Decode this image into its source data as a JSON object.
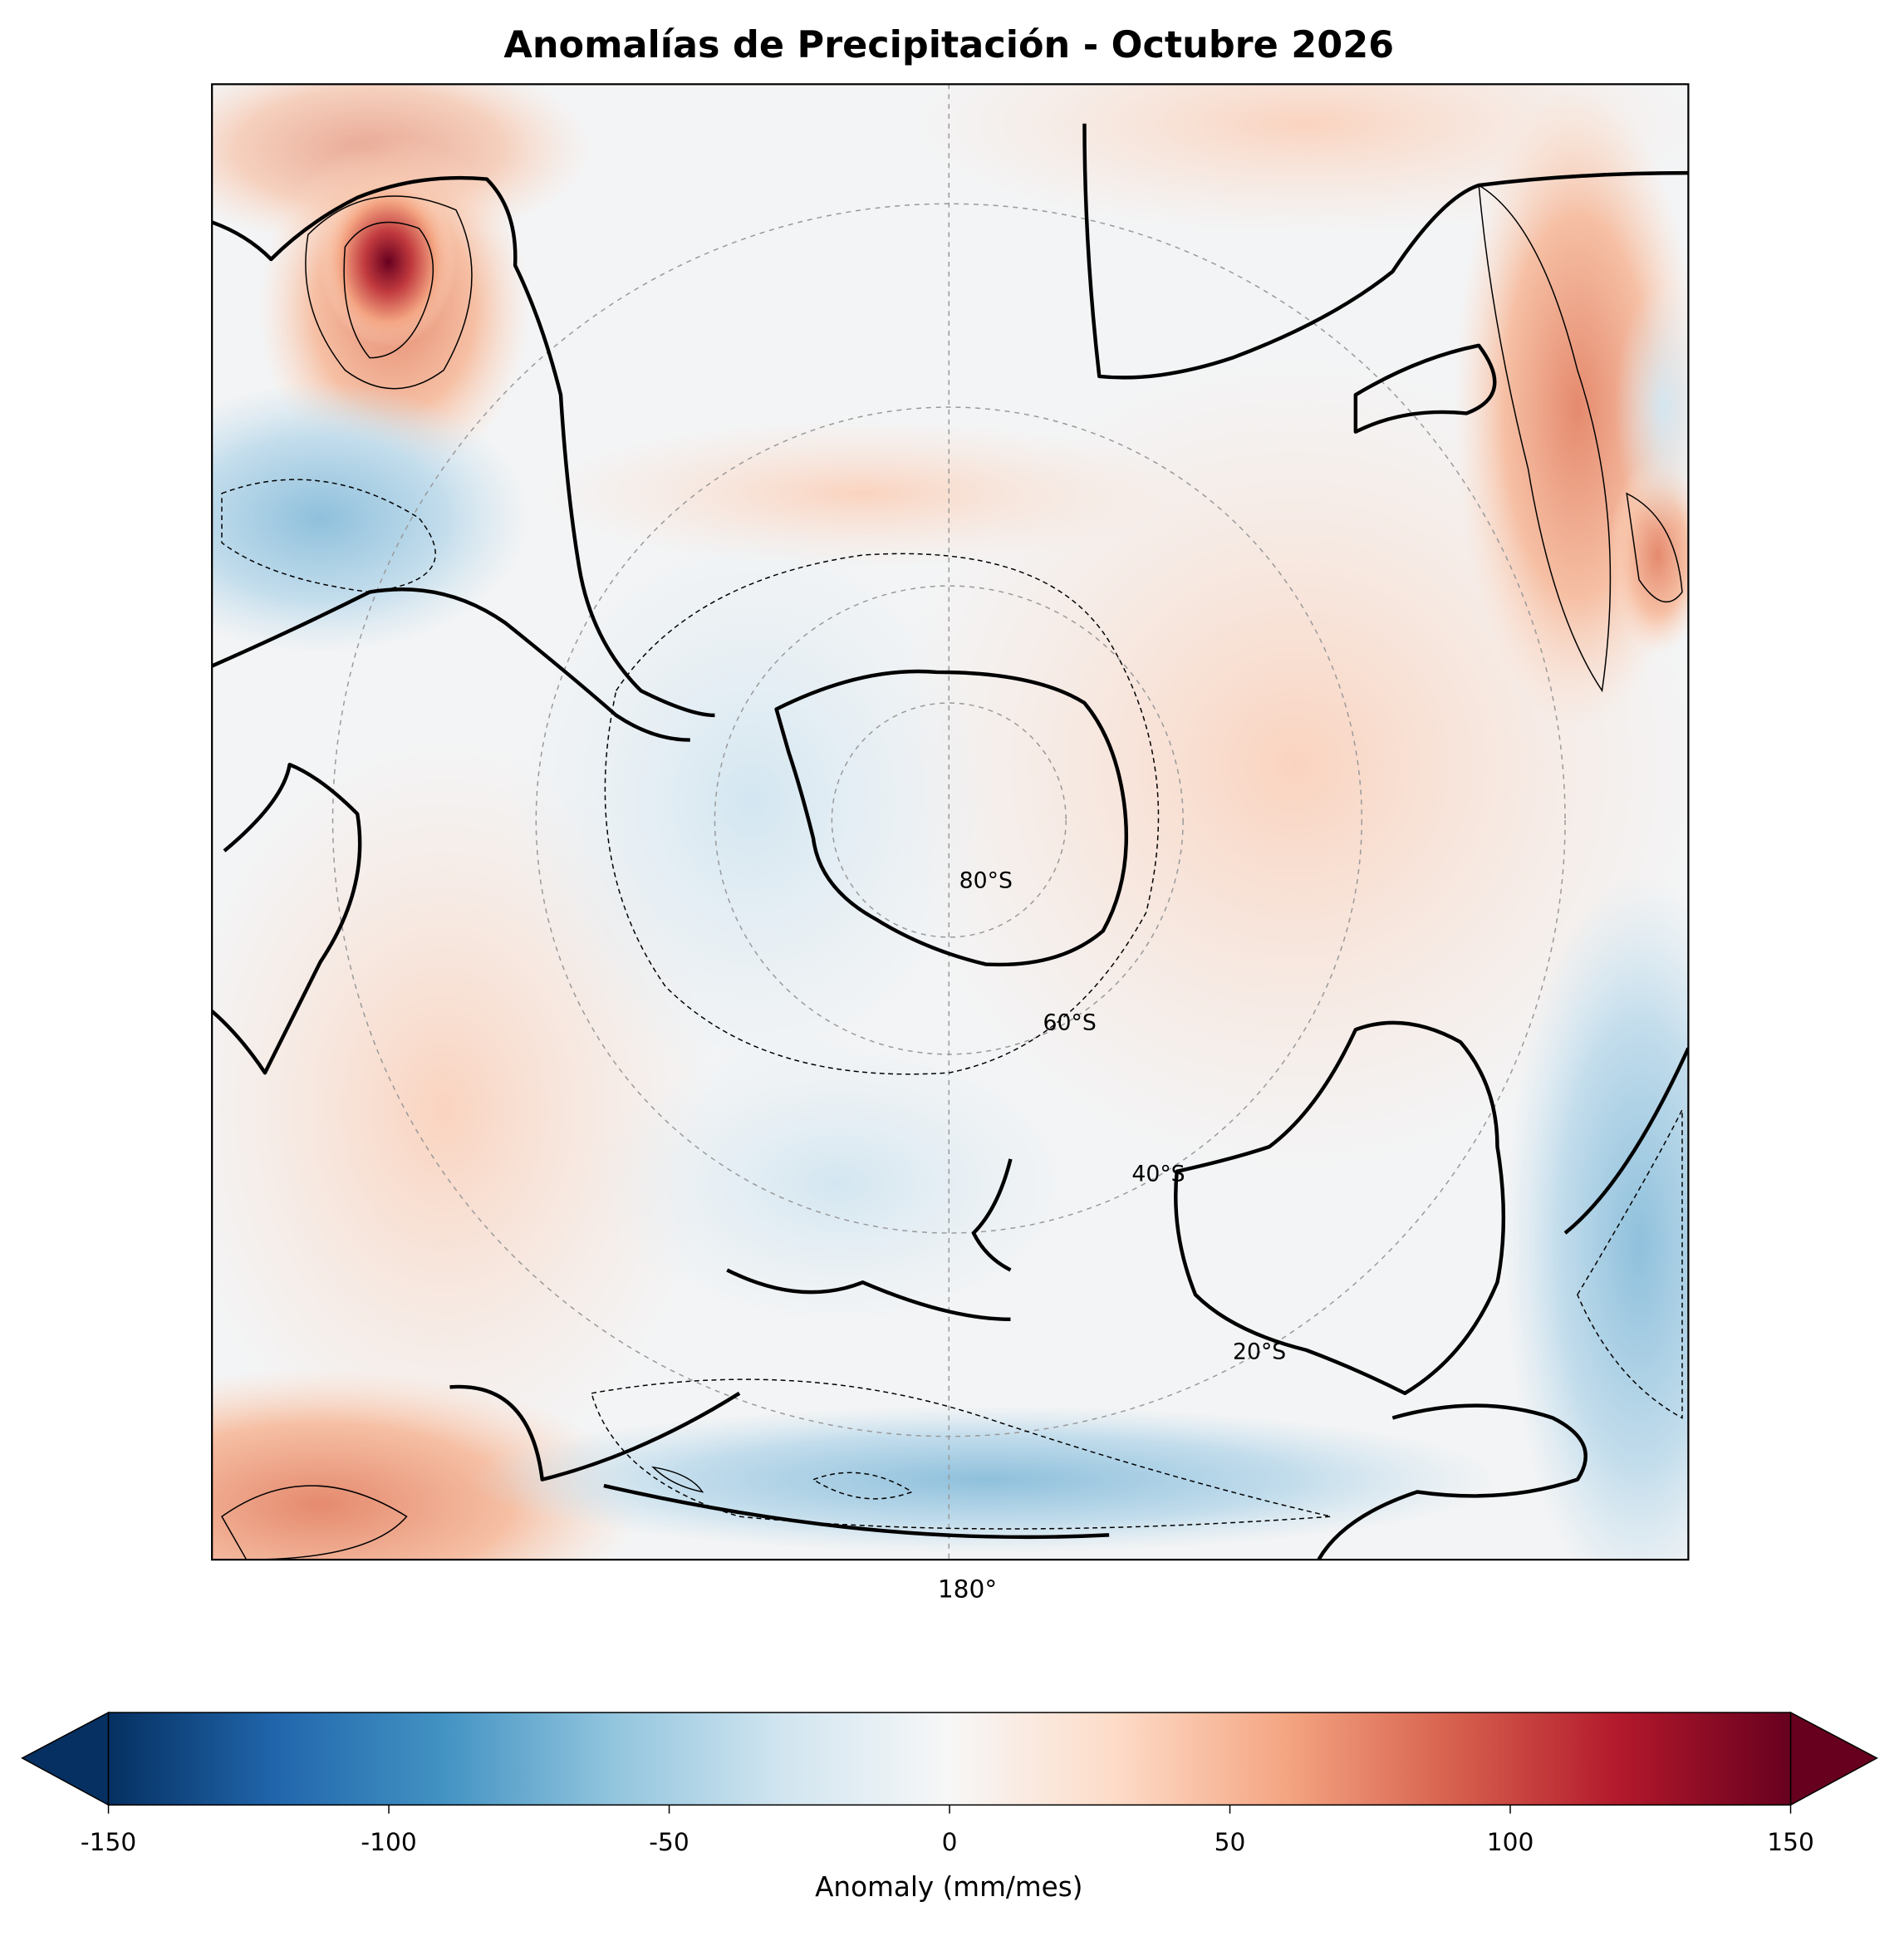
{
  "title": "Anomalías de Precipitación - Octubre 2026",
  "map": {
    "lon_labels": [
      "180°"
    ],
    "lat_labels": [
      "80°S",
      "60°S",
      "40°S",
      "20°S"
    ]
  },
  "colorbar": {
    "label": "Anomaly (mm/mes)",
    "lim": [
      -150,
      150
    ],
    "ticks": [
      -150,
      -100,
      -50,
      0,
      50,
      100,
      150
    ],
    "colormap": "RdBu_r"
  }
}
